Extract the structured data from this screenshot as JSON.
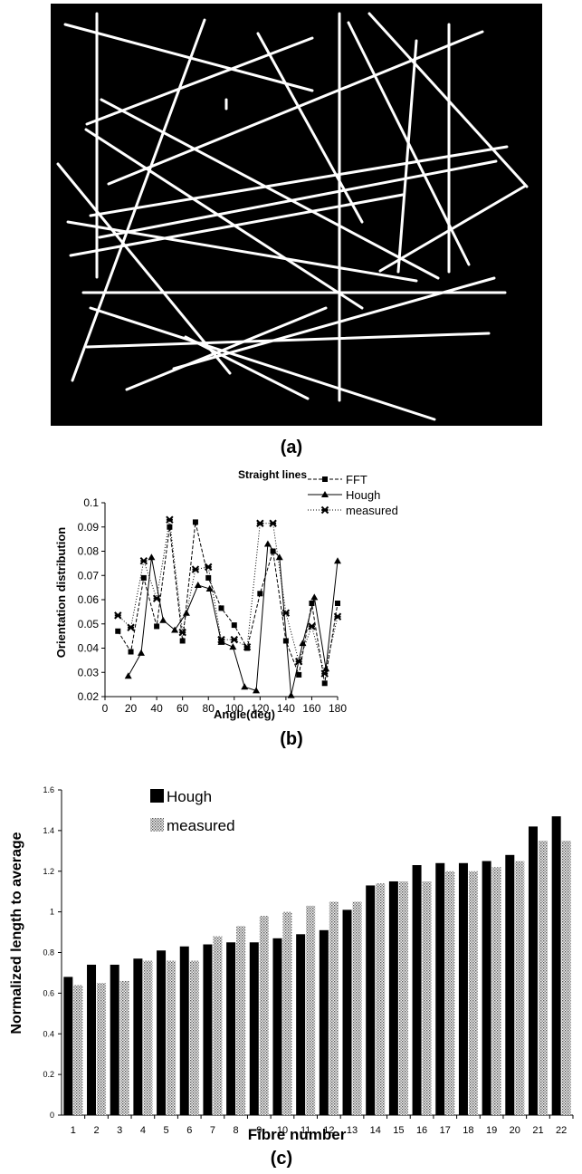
{
  "panel_labels": {
    "a": "(a)",
    "b": "(b)",
    "c": "(c)"
  },
  "chart_data": [
    {
      "type": "image",
      "description_label": "(a)",
      "background": "#000000",
      "line_color": "#ffffff"
    },
    {
      "type": "line",
      "title": "Straight lines",
      "xlabel": "Angle(deg)",
      "ylabel": "Orientation distribution",
      "xlim": [
        0,
        180
      ],
      "ylim": [
        0.02,
        0.1
      ],
      "xticks": [
        "0",
        "20",
        "40",
        "60",
        "80",
        "100",
        "120",
        "140",
        "160",
        "180"
      ],
      "yticks": [
        "0.02",
        "0.03",
        "0.04",
        "0.05",
        "0.06",
        "0.07",
        "0.08",
        "0.09",
        "0.1"
      ],
      "grid": false,
      "legend_position": "top-right",
      "series": [
        {
          "name": "FFT",
          "marker": "square",
          "line": "dashed",
          "x": [
            10,
            20,
            30,
            40,
            50,
            60,
            70,
            80,
            90,
            100,
            110,
            120,
            130,
            140,
            150,
            160,
            170,
            180
          ],
          "y": [
            0.047,
            0.0385,
            0.069,
            0.049,
            0.09,
            0.043,
            0.092,
            0.069,
            0.0565,
            0.0495,
            0.04,
            0.0625,
            0.08,
            0.043,
            0.029,
            0.0585,
            0.0255,
            0.0585
          ]
        },
        {
          "name": "Hough",
          "marker": "triangle",
          "line": "solid",
          "x": [
            18,
            28,
            36,
            45,
            54,
            63,
            72,
            81,
            90,
            99,
            108,
            117,
            126,
            135,
            144,
            153,
            162,
            171,
            180
          ],
          "y": [
            0.0285,
            0.038,
            0.0775,
            0.0515,
            0.0475,
            0.0545,
            0.066,
            0.0645,
            0.0425,
            0.0405,
            0.024,
            0.0225,
            0.083,
            0.0775,
            0.0205,
            0.042,
            0.061,
            0.0315,
            0.076
          ]
        },
        {
          "name": "measured",
          "marker": "star",
          "line": "dotted",
          "x": [
            10,
            20,
            30,
            40,
            50,
            60,
            70,
            80,
            90,
            100,
            110,
            120,
            130,
            140,
            150,
            160,
            170,
            180
          ],
          "y": [
            0.0535,
            0.0485,
            0.076,
            0.0605,
            0.093,
            0.0465,
            0.0725,
            0.0735,
            0.0435,
            0.0435,
            0.0405,
            0.0915,
            0.0915,
            0.0545,
            0.0345,
            0.049,
            0.0295,
            0.053
          ]
        }
      ]
    },
    {
      "type": "bar",
      "xlabel": "Fibre number",
      "ylabel": "Normalized length to average",
      "ylim": [
        0,
        1.6
      ],
      "yticks": [
        "0",
        "0.2",
        "0.4",
        "0.6",
        "0.8",
        "1",
        "1.2",
        "1.4",
        "1.6"
      ],
      "grid": false,
      "legend_position": "top-left",
      "categories": [
        "1",
        "2",
        "3",
        "4",
        "5",
        "6",
        "7",
        "8",
        "9",
        "10",
        "11",
        "12",
        "13",
        "14",
        "15",
        "16",
        "17",
        "18",
        "19",
        "20",
        "21",
        "22"
      ],
      "series": [
        {
          "name": "Hough",
          "fill": "solid-black",
          "values": [
            0.68,
            0.74,
            0.74,
            0.77,
            0.81,
            0.83,
            0.84,
            0.85,
            0.85,
            0.87,
            0.89,
            0.91,
            1.01,
            1.13,
            1.15,
            1.23,
            1.24,
            1.24,
            1.25,
            1.28,
            1.42,
            1.47
          ]
        },
        {
          "name": "measured",
          "fill": "dotted-grey",
          "values": [
            0.64,
            0.65,
            0.66,
            0.76,
            0.76,
            0.76,
            0.88,
            0.93,
            0.98,
            1.0,
            1.03,
            1.05,
            1.05,
            1.14,
            1.15,
            1.15,
            1.2,
            1.2,
            1.22,
            1.25,
            1.35,
            1.35
          ]
        }
      ]
    }
  ]
}
